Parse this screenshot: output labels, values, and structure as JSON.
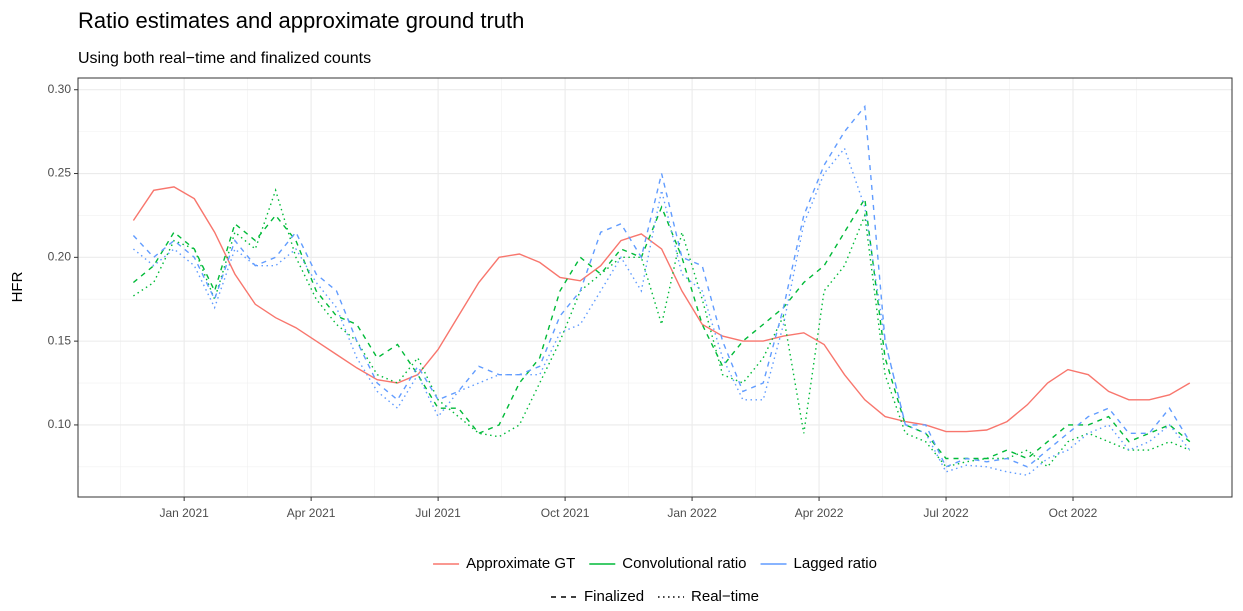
{
  "chart_data": {
    "type": "line",
    "title": "Ratio estimates and approximate ground truth",
    "subtitle": "Using both real−time and finalized counts",
    "y_label": "HFR",
    "x": [
      2020.9,
      2020.94,
      2020.98,
      2021.02,
      2021.06,
      2021.1,
      2021.14,
      2021.18,
      2021.22,
      2021.26,
      2021.3,
      2021.34,
      2021.38,
      2021.42,
      2021.46,
      2021.5,
      2021.54,
      2021.58,
      2021.62,
      2021.66,
      2021.7,
      2021.74,
      2021.78,
      2021.82,
      2021.86,
      2021.9,
      2021.94,
      2021.98,
      2022.02,
      2022.06,
      2022.1,
      2022.14,
      2022.18,
      2022.22,
      2022.26,
      2022.3,
      2022.34,
      2022.38,
      2022.42,
      2022.46,
      2022.5,
      2022.54,
      2022.58,
      2022.62,
      2022.66,
      2022.7,
      2022.74,
      2022.78,
      2022.82,
      2022.86,
      2022.9,
      2022.94,
      2022.98
    ],
    "xlim": [
      2020.791,
      2023.063
    ],
    "xticks": [
      {
        "value": 2021,
        "label": "Jan 2021"
      },
      {
        "value": 2021.25,
        "label": "Apr 2021"
      },
      {
        "value": 2021.5,
        "label": "Jul 2021"
      },
      {
        "value": 2021.75,
        "label": "Oct 2021"
      },
      {
        "value": 2022,
        "label": "Jan 2022"
      },
      {
        "value": 2022.25,
        "label": "Apr 2022"
      },
      {
        "value": 2022.5,
        "label": "Jul 2022"
      },
      {
        "value": 2022.75,
        "label": "Oct 2022"
      }
    ],
    "ylim": [
      0.057,
      0.307
    ],
    "yticks": [
      {
        "value": 0.1,
        "label": "0.10"
      },
      0.15,
      {
        "value": 0.2,
        "label": "0.20"
      },
      0.25,
      {
        "value": 0.3,
        "label": "0.30"
      }
    ],
    "grid": true,
    "color_legend": [
      {
        "label": "Approximate GT",
        "color": "#F8766D"
      },
      {
        "label": "Convolutional ratio",
        "color": "#00BA38"
      },
      {
        "label": "Lagged ratio",
        "color": "#619CFF"
      }
    ],
    "linetype_legend": [
      {
        "label": "Finalized",
        "dash": "dashed"
      },
      {
        "label": "Real−time",
        "dash": "dotted"
      }
    ],
    "series": [
      {
        "color": "#F8766D",
        "dash": "solid",
        "values": [
          0.222,
          0.24,
          0.242,
          0.235,
          0.215,
          0.19,
          0.172,
          0.164,
          0.158,
          0.15,
          0.142,
          0.134,
          0.127,
          0.125,
          0.13,
          0.145,
          0.165,
          0.185,
          0.2,
          0.202,
          0.197,
          0.188,
          0.186,
          0.195,
          0.21,
          0.214,
          0.205,
          0.18,
          0.16,
          0.153,
          0.15,
          0.15,
          0.153,
          0.155,
          0.148,
          0.13,
          0.115,
          0.105,
          0.102,
          0.1,
          0.096,
          0.096,
          0.097,
          0.102,
          0.112,
          0.125,
          0.133,
          0.13,
          0.12,
          0.115,
          0.115,
          0.118,
          0.125
        ]
      },
      {
        "color": "#00BA38",
        "dash": "dashed",
        "values": [
          0.185,
          0.195,
          0.215,
          0.205,
          0.18,
          0.22,
          0.21,
          0.225,
          0.21,
          0.18,
          0.165,
          0.16,
          0.14,
          0.148,
          0.13,
          0.11,
          0.11,
          0.095,
          0.1,
          0.125,
          0.14,
          0.18,
          0.2,
          0.19,
          0.205,
          0.2,
          0.23,
          0.2,
          0.16,
          0.135,
          0.15,
          0.16,
          0.17,
          0.185,
          0.195,
          0.215,
          0.235,
          0.14,
          0.1,
          0.095,
          0.08,
          0.08,
          0.08,
          0.085,
          0.08,
          0.09,
          0.1,
          0.1,
          0.105,
          0.09,
          0.095,
          0.1,
          0.09
        ]
      },
      {
        "color": "#00BA38",
        "dash": "dotted",
        "values": [
          0.177,
          0.185,
          0.21,
          0.205,
          0.175,
          0.215,
          0.205,
          0.24,
          0.2,
          0.175,
          0.16,
          0.15,
          0.13,
          0.125,
          0.14,
          0.115,
          0.105,
          0.095,
          0.093,
          0.1,
          0.125,
          0.15,
          0.18,
          0.19,
          0.2,
          0.2,
          0.16,
          0.215,
          0.175,
          0.13,
          0.125,
          0.14,
          0.165,
          0.095,
          0.18,
          0.195,
          0.225,
          0.13,
          0.095,
          0.09,
          0.075,
          0.078,
          0.08,
          0.08,
          0.085,
          0.075,
          0.09,
          0.095,
          0.09,
          0.085,
          0.085,
          0.09,
          0.085
        ]
      },
      {
        "color": "#619CFF",
        "dash": "dashed",
        "values": [
          0.213,
          0.2,
          0.21,
          0.2,
          0.175,
          0.21,
          0.195,
          0.2,
          0.215,
          0.19,
          0.18,
          0.15,
          0.125,
          0.115,
          0.135,
          0.115,
          0.12,
          0.135,
          0.13,
          0.13,
          0.135,
          0.165,
          0.18,
          0.215,
          0.22,
          0.2,
          0.25,
          0.2,
          0.195,
          0.15,
          0.12,
          0.125,
          0.17,
          0.225,
          0.255,
          0.275,
          0.29,
          0.15,
          0.1,
          0.1,
          0.075,
          0.08,
          0.078,
          0.08,
          0.075,
          0.085,
          0.095,
          0.105,
          0.11,
          0.095,
          0.095,
          0.11,
          0.09
        ]
      },
      {
        "color": "#619CFF",
        "dash": "dotted",
        "values": [
          0.205,
          0.195,
          0.205,
          0.195,
          0.17,
          0.205,
          0.195,
          0.195,
          0.205,
          0.185,
          0.17,
          0.14,
          0.12,
          0.11,
          0.13,
          0.105,
          0.12,
          0.125,
          0.13,
          0.13,
          0.13,
          0.155,
          0.16,
          0.18,
          0.2,
          0.18,
          0.24,
          0.19,
          0.18,
          0.14,
          0.115,
          0.115,
          0.16,
          0.22,
          0.25,
          0.265,
          0.23,
          0.15,
          0.1,
          0.095,
          0.072,
          0.076,
          0.075,
          0.072,
          0.07,
          0.08,
          0.085,
          0.095,
          0.1,
          0.085,
          0.09,
          0.1,
          0.085
        ]
      }
    ]
  }
}
